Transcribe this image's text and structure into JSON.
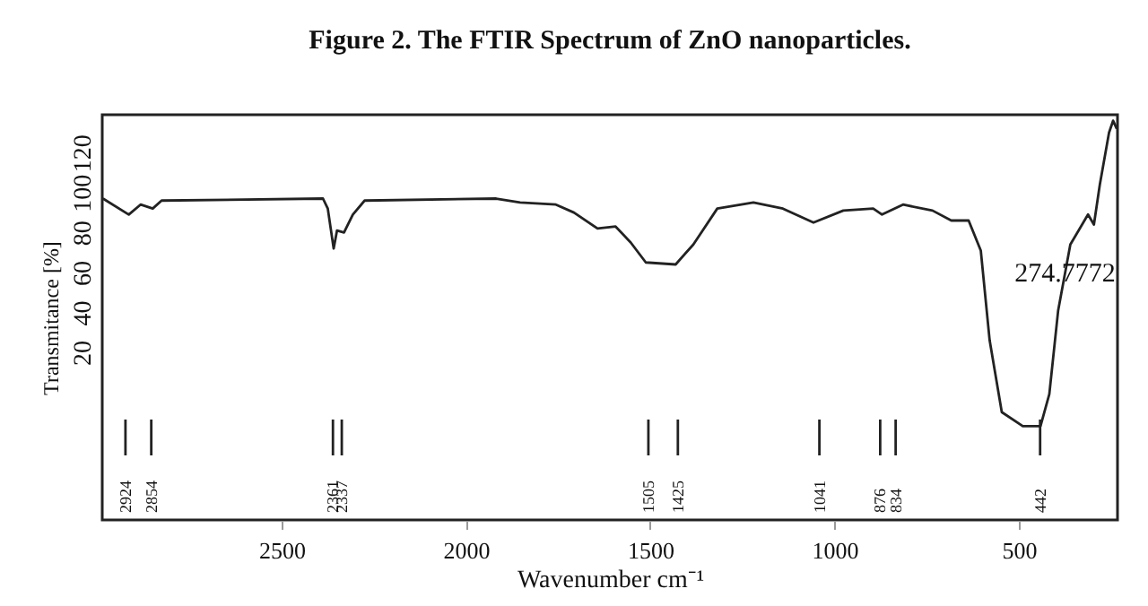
{
  "chart_data": {
    "type": "line",
    "title": "Figure 2. The FTIR Spectrum of ZnO nanoparticles.",
    "xlabel": "Wavenumber cm⁻¹",
    "ylabel": "Transmitance [%]",
    "x": [
      2985,
      2915,
      2883,
      2850,
      2826,
      2388,
      2375,
      2359,
      2350,
      2331,
      2307,
      2275,
      1918,
      1853,
      1756,
      1707,
      1643,
      1594,
      1553,
      1512,
      1431,
      1383,
      1318,
      1220,
      1140,
      1057,
      976,
      895,
      871,
      814,
      734,
      683,
      636,
      603,
      579,
      546,
      489,
      441,
      417,
      393,
      360,
      312,
      296,
      280,
      255,
      244,
      234
    ],
    "series": [
      {
        "color": "#222222",
        "values": [
          97,
          89,
          94,
          92,
          96,
          97,
          92,
          72,
          81,
          80,
          89,
          96,
          97,
          95,
          94,
          90,
          82,
          83,
          75,
          65,
          64,
          74,
          92,
          95,
          92,
          85,
          91,
          92,
          89,
          94,
          91,
          86,
          86,
          71,
          26,
          -10,
          -17,
          -17,
          -1,
          41,
          74,
          89,
          84,
          104,
          130,
          136,
          132
        ]
      }
    ],
    "xlim": [
      2987,
      232
    ],
    "xticks": [
      2500,
      2000,
      1500,
      1000,
      500
    ],
    "ylim": [
      -64,
      139
    ],
    "yticks": [
      20,
      40,
      60,
      80,
      100,
      120
    ],
    "grid": false,
    "ref_lines": [
      {
        "axis": "x",
        "value": 2924,
        "label": "2924"
      },
      {
        "axis": "x",
        "value": 2854,
        "label": "2854"
      },
      {
        "axis": "x",
        "value": 2361,
        "label": "2361"
      },
      {
        "axis": "x",
        "value": 2337,
        "label": "2337"
      },
      {
        "axis": "x",
        "value": 1505,
        "label": "1505"
      },
      {
        "axis": "x",
        "value": 1425,
        "label": "1425"
      },
      {
        "axis": "x",
        "value": 1041,
        "label": "1041"
      },
      {
        "axis": "x",
        "value": 876,
        "label": "876"
      },
      {
        "axis": "x",
        "value": 834,
        "label": "834"
      },
      {
        "axis": "x",
        "value": 442,
        "label": "442"
      }
    ],
    "annotations": [
      {
        "text": "274.7772",
        "x": 296,
        "y": 84
      }
    ]
  }
}
